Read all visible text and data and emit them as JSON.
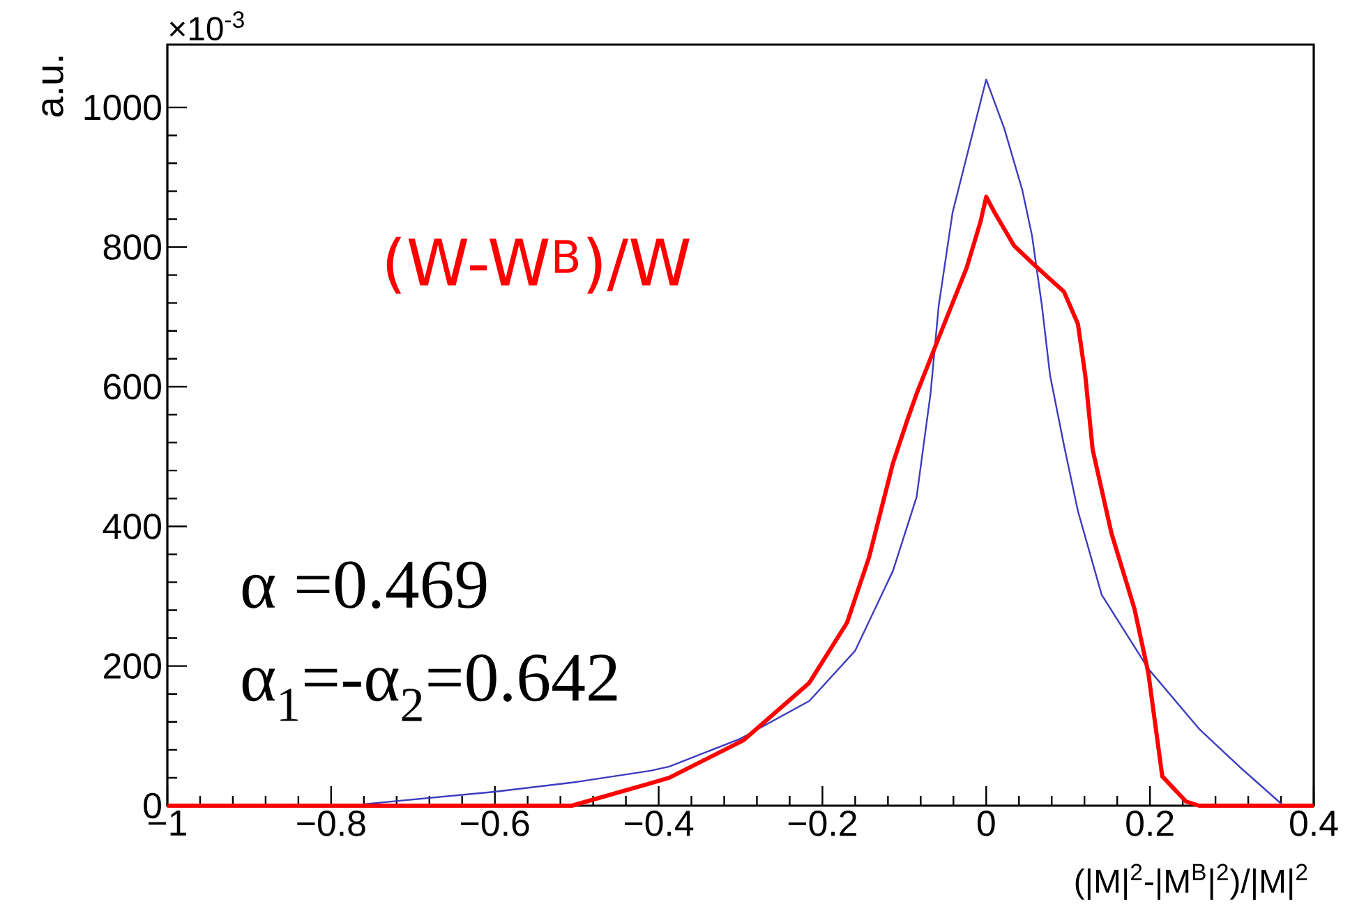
{
  "chart_data": {
    "type": "line",
    "xlabel": "(|M|$^{2}$-|M$^{B}$|$^{2}$)/|M|$^{2}$",
    "ylabel": "a.u.",
    "annotations": [
      "×10$^{-3}$",
      "(W-W$^{B}$)/W",
      "α =0.469",
      "α$_{1}$=-α$_{2}$=0.642"
    ],
    "xlim": [
      -1,
      0.4
    ],
    "ylim": [
      0,
      1090
    ],
    "xticks": [
      {
        "value": -1,
        "label": "−1"
      },
      {
        "value": -0.8,
        "label": "−0.8"
      },
      {
        "value": -0.6,
        "label": "−0.6"
      },
      {
        "value": -0.4,
        "label": "−0.4"
      },
      {
        "value": -0.2,
        "label": "−0.2"
      },
      0,
      0.2,
      0.4
    ],
    "yticks": [
      0,
      200,
      400,
      600,
      800,
      1000
    ],
    "grid": false,
    "marker": "none",
    "line_style": "solid",
    "series": [
      {
        "color": "#3c3cc0",
        "x": [
          -0.78,
          -0.6,
          -0.5,
          -0.41,
          -0.387,
          -0.3,
          -0.216,
          -0.16,
          -0.114,
          -0.085,
          -0.068,
          -0.058,
          -0.041,
          0,
          0.022,
          0.044,
          0.056,
          0.068,
          0.078,
          0.095,
          0.112,
          0.141,
          0.198,
          0.26,
          0.31,
          0.363
        ],
        "values": [
          0,
          20,
          34,
          50,
          56,
          96,
          150,
          222,
          336,
          442,
          590,
          716,
          850,
          1040,
          970,
          882,
          816,
          716,
          616,
          516,
          422,
          302,
          196,
          110,
          55,
          0
        ]
      },
      {
        "color": "#ff0000",
        "x": [
          -1,
          -0.506,
          -0.41,
          -0.387,
          -0.296,
          -0.216,
          -0.17,
          -0.143,
          -0.114,
          -0.097,
          -0.085,
          -0.058,
          -0.024,
          -0.007,
          0,
          0.01,
          0.034,
          0.061,
          0.095,
          0.112,
          0.121,
          0.13,
          0.153,
          0.181,
          0.198,
          0.215,
          0.244,
          0.26,
          0.4
        ],
        "values": [
          0,
          0,
          32,
          40,
          94,
          176,
          262,
          356,
          490,
          550,
          590,
          670,
          770,
          836,
          872,
          850,
          802,
          772,
          736,
          690,
          616,
          510,
          390,
          282,
          190,
          42,
          6,
          0,
          0
        ]
      }
    ]
  }
}
